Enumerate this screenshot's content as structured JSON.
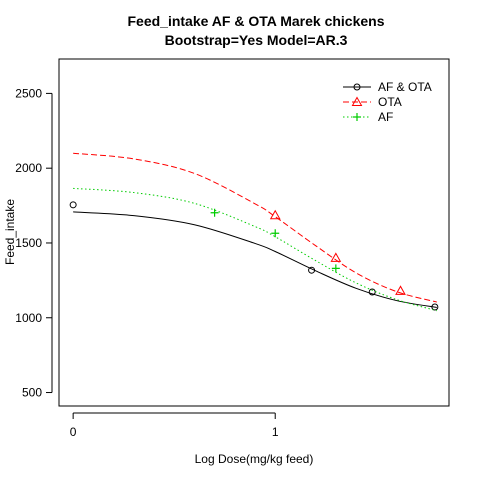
{
  "chart_data": {
    "type": "line",
    "title": "Feed_intake AF & OTA  Marek chickens",
    "subtitle": "Bootstrap=Yes Model=AR.3",
    "xlabel": "Log Dose(mg/kg feed)",
    "ylabel": "Feed_intake",
    "xlim": [
      -0.07,
      1.86
    ],
    "ylim": [
      410,
      2730
    ],
    "x_ticks": [
      0,
      1
    ],
    "y_ticks": [
      500,
      1000,
      1500,
      2000,
      2500
    ],
    "grid": false,
    "legend_position": "top-right",
    "series": [
      {
        "name": "AF & OTA",
        "color": "#000000",
        "line_style": "solid",
        "marker": "circle",
        "points": {
          "x": [
            0,
            1.18,
            1.48,
            1.79
          ],
          "y": [
            1755,
            1318,
            1172,
            1072
          ]
        },
        "curve": {
          "x": [
            0,
            0.3,
            0.6,
            0.9,
            1.0,
            1.2,
            1.4,
            1.6,
            1.8
          ],
          "y": [
            1708,
            1683,
            1622,
            1497,
            1443,
            1314,
            1197,
            1115,
            1069
          ]
        }
      },
      {
        "name": "OTA",
        "color": "#ff0000",
        "line_style": "dashed",
        "marker": "triangle",
        "points": {
          "x": [
            1.0,
            1.3,
            1.62
          ],
          "y": [
            1685,
            1400,
            1180
          ]
        },
        "curve": {
          "x": [
            0,
            0.3,
            0.6,
            0.9,
            1.0,
            1.2,
            1.4,
            1.6,
            1.8
          ],
          "y": [
            2100,
            2062,
            1965,
            1762,
            1676,
            1482,
            1300,
            1175,
            1105
          ]
        }
      },
      {
        "name": "AF",
        "color": "#00cc00",
        "line_style": "dotted",
        "marker": "plus",
        "points": {
          "x": [
            0.7,
            1.0,
            1.3
          ],
          "y": [
            1702,
            1565,
            1330
          ]
        },
        "curve": {
          "x": [
            0,
            0.3,
            0.6,
            0.9,
            1.0,
            1.2,
            1.4,
            1.6,
            1.8
          ],
          "y": [
            1865,
            1837,
            1765,
            1610,
            1542,
            1382,
            1233,
            1122,
            1047
          ]
        }
      }
    ]
  }
}
